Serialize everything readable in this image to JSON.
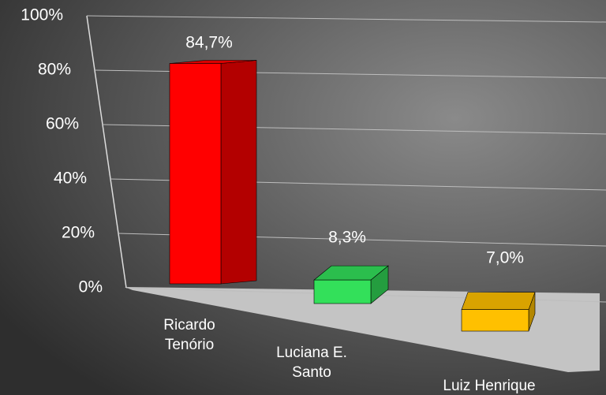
{
  "chart_data": {
    "type": "bar3d",
    "categories": [
      "Ricardo Tenório",
      "Luciana E. Santo",
      "Luiz Henrique"
    ],
    "values": [
      84.7,
      8.3,
      7.0
    ],
    "value_labels": [
      "84,7%",
      "8,3%",
      "7,0%"
    ],
    "colors": [
      "#ff0000",
      "#33e05a",
      "#ffc000"
    ],
    "ylim": [
      0,
      100
    ],
    "yticks": [
      {
        "value": 0,
        "label": "0%"
      },
      {
        "value": 20,
        "label": "20%"
      },
      {
        "value": 40,
        "label": "40%"
      },
      {
        "value": 60,
        "label": "60%"
      },
      {
        "value": 80,
        "label": "80%"
      },
      {
        "value": 100,
        "label": "100%"
      }
    ],
    "grid": true
  }
}
